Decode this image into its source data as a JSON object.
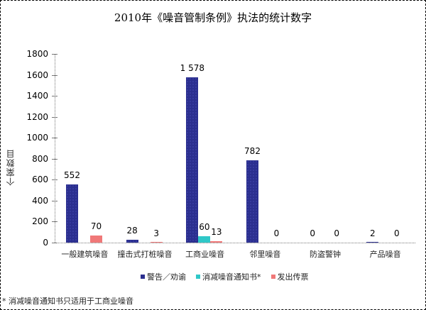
{
  "chart_data": {
    "type": "bar",
    "title": "2010年《噪音管制条例》执法的统计数字",
    "xlabel": "",
    "ylabel": "个案数目",
    "ylim": [
      0,
      1800
    ],
    "yticks": [
      0,
      200,
      400,
      600,
      800,
      1000,
      1200,
      1400,
      1600,
      1800
    ],
    "grid": false,
    "legend_position": "bottom",
    "categories": [
      "一般建筑噪音",
      "撞击式打桩噪音",
      "工商业噪音",
      "邻里噪音",
      "防盗警钟",
      "产品噪音"
    ],
    "series": [
      {
        "name": "警告／劝谕",
        "color": "#2b2f8f",
        "values": [
          552,
          28,
          1578,
          782,
          0,
          2
        ],
        "labels": [
          "552",
          "28",
          "1 578",
          "782",
          "0",
          "2"
        ]
      },
      {
        "name": "消减噪音通知书*",
        "color": "#2fc8c8",
        "values": [
          null,
          null,
          60,
          null,
          null,
          null
        ],
        "labels": [
          "",
          "",
          "60",
          "",
          "",
          ""
        ]
      },
      {
        "name": "发出传票",
        "color": "#f07878",
        "values": [
          70,
          3,
          13,
          0,
          0,
          0
        ],
        "labels": [
          "70",
          "3",
          "13",
          "0",
          "0",
          "0"
        ]
      }
    ],
    "footnote": "* 消减噪音通知书只适用于工商业噪音"
  }
}
